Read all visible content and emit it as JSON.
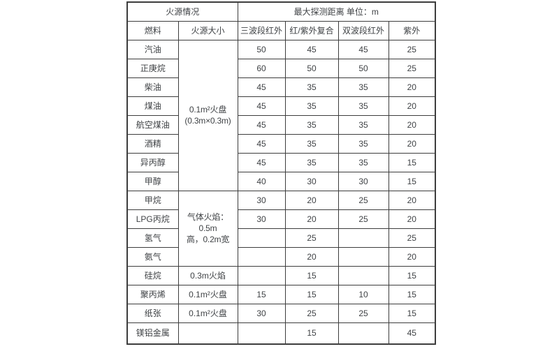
{
  "colors": {
    "background": "#ffffff",
    "border": "#3d3d3d",
    "text": "#3f4245",
    "page_number_text": "#8a8a8a"
  },
  "page_number": "45",
  "table": {
    "title_left": "火源情况",
    "title_right": "最大探测距离 单位：m",
    "column_headers": [
      "燃料",
      "火源大小",
      "三波段红外",
      "红/紫外复合",
      "双波段红外",
      "紫外"
    ],
    "rows": [
      [
        {
          "t": "火源情况",
          "cs": 2
        },
        {
          "t": "最大探测距离 单位：m",
          "cs": 4
        }
      ],
      [
        {
          "t": "燃料"
        },
        {
          "t": "火源大小"
        },
        {
          "t": "三波段红外"
        },
        {
          "t": "红/紫外复合"
        },
        {
          "t": "双波段红外"
        },
        {
          "t": "紫外"
        }
      ],
      [
        {
          "t": "汽油"
        },
        {
          "t": "0.1m²火盘\n(0.3m×0.3m)",
          "rs": 8,
          "cls": "pre"
        },
        {
          "t": "50"
        },
        {
          "t": "45"
        },
        {
          "t": "45"
        },
        {
          "t": "25"
        }
      ],
      [
        {
          "t": "正庚烷"
        },
        {
          "t": "60"
        },
        {
          "t": "50"
        },
        {
          "t": "50"
        },
        {
          "t": "25"
        }
      ],
      [
        {
          "t": "柴油"
        },
        {
          "t": "45"
        },
        {
          "t": "35"
        },
        {
          "t": "35"
        },
        {
          "t": "20"
        }
      ],
      [
        {
          "t": "煤油"
        },
        {
          "t": "45"
        },
        {
          "t": "35"
        },
        {
          "t": "35"
        },
        {
          "t": "20"
        }
      ],
      [
        {
          "t": "航空煤油"
        },
        {
          "t": "45"
        },
        {
          "t": "35"
        },
        {
          "t": "35"
        },
        {
          "t": "20"
        }
      ],
      [
        {
          "t": "酒精"
        },
        {
          "t": "45"
        },
        {
          "t": "35"
        },
        {
          "t": "35"
        },
        {
          "t": "20"
        }
      ],
      [
        {
          "t": "异丙醇"
        },
        {
          "t": "45"
        },
        {
          "t": "35"
        },
        {
          "t": "35"
        },
        {
          "t": "15"
        }
      ],
      [
        {
          "t": "甲醇"
        },
        {
          "t": "40"
        },
        {
          "t": "30"
        },
        {
          "t": "30"
        },
        {
          "t": "15"
        }
      ],
      [
        {
          "t": "甲烷"
        },
        {
          "t": "气体火焰：0.5m\n高，0.2m宽",
          "rs": 4,
          "cls": "pre"
        },
        {
          "t": "30"
        },
        {
          "t": "20"
        },
        {
          "t": "25"
        },
        {
          "t": "20"
        }
      ],
      [
        {
          "t": "LPG丙烷"
        },
        {
          "t": "30"
        },
        {
          "t": "20"
        },
        {
          "t": "25"
        },
        {
          "t": "20"
        }
      ],
      [
        {
          "t": "氢气"
        },
        {
          "t": ""
        },
        {
          "t": "25"
        },
        {
          "t": ""
        },
        {
          "t": "25"
        }
      ],
      [
        {
          "t": "氨气"
        },
        {
          "t": ""
        },
        {
          "t": "20"
        },
        {
          "t": ""
        },
        {
          "t": "20"
        }
      ],
      [
        {
          "t": "硅烷"
        },
        {
          "t": "0.3m火焰"
        },
        {
          "t": ""
        },
        {
          "t": "15"
        },
        {
          "t": ""
        },
        {
          "t": "15"
        }
      ],
      [
        {
          "t": "聚丙烯"
        },
        {
          "t": "0.1m²火盘"
        },
        {
          "t": "15"
        },
        {
          "t": "15"
        },
        {
          "t": "10"
        },
        {
          "t": "15"
        }
      ],
      [
        {
          "t": "纸张"
        },
        {
          "t": "0.1m²火盘"
        },
        {
          "t": "30"
        },
        {
          "t": "25"
        },
        {
          "t": "25"
        },
        {
          "t": "15"
        }
      ],
      [
        {
          "t": "镁铝金属",
          "cls": "thick"
        },
        {
          "t": "",
          "cls": "thick"
        },
        {
          "t": "",
          "cls": "thick"
        },
        {
          "t": "15",
          "cls": "thick"
        },
        {
          "t": "",
          "cls": "thick"
        },
        {
          "t": "45",
          "cls": "thick pagenum",
          "name": "page-number"
        }
      ]
    ]
  }
}
